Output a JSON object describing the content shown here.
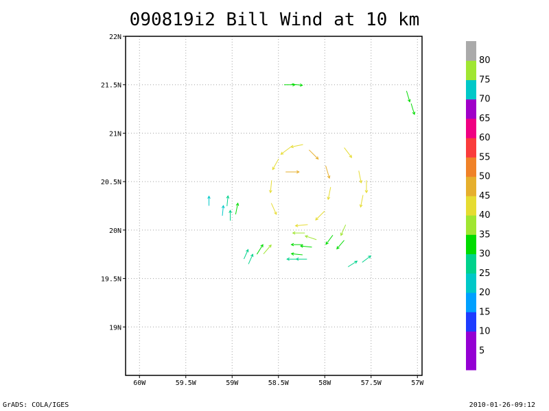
{
  "title": "090819i2 Bill Wind at 10 km",
  "footer": {
    "left": "GrADS: COLA/IGES",
    "right": "2010-01-26-09:12"
  },
  "colors": {
    "frame": "#000000",
    "grid": "#a0a0a0"
  },
  "chart_data": {
    "type": "vector-field",
    "grid": true,
    "xlim": [
      -60.15,
      -56.95
    ],
    "ylim": [
      18.5,
      22.0
    ],
    "x_ticks": [
      {
        "value": -60.0,
        "label": "60W"
      },
      {
        "value": -59.5,
        "label": "59.5W"
      },
      {
        "value": -59.0,
        "label": "59W"
      },
      {
        "value": -58.5,
        "label": "58.5W"
      },
      {
        "value": -58.0,
        "label": "58W"
      },
      {
        "value": -57.5,
        "label": "57.5W"
      },
      {
        "value": -57.0,
        "label": "57W"
      }
    ],
    "y_ticks": [
      {
        "value": 22.0,
        "label": "22N"
      },
      {
        "value": 21.5,
        "label": "21.5N"
      },
      {
        "value": 21.0,
        "label": "21N"
      },
      {
        "value": 20.5,
        "label": "20.5N"
      },
      {
        "value": 20.0,
        "label": "20N"
      },
      {
        "value": 19.5,
        "label": "19.5N"
      },
      {
        "value": 19.0,
        "label": "19N"
      }
    ],
    "colorbar": {
      "levels": [
        {
          "label": "5",
          "color": "#9400d3"
        },
        {
          "label": "10",
          "color": "#9400d3"
        },
        {
          "label": "15",
          "color": "#1e3cff"
        },
        {
          "label": "20",
          "color": "#00a0ff"
        },
        {
          "label": "25",
          "color": "#00c8c8"
        },
        {
          "label": "30",
          "color": "#00d28c"
        },
        {
          "label": "35",
          "color": "#00dc00"
        },
        {
          "label": "40",
          "color": "#a0e632"
        },
        {
          "label": "45",
          "color": "#e6dc32"
        },
        {
          "label": "50",
          "color": "#e6af2d"
        },
        {
          "label": "55",
          "color": "#f08228"
        },
        {
          "label": "60",
          "color": "#fa3c3c"
        },
        {
          "label": "65",
          "color": "#f00082"
        },
        {
          "label": "70",
          "color": "#a000c8"
        },
        {
          "label": "75",
          "color": "#00c8c8"
        },
        {
          "label": "80",
          "color": "#a0e632"
        },
        {
          "label": "",
          "color": "#aaaaaa"
        }
      ]
    },
    "vectors": [
      {
        "lon": -58.38,
        "lat": 21.5,
        "u": 1.0,
        "v": 0.0,
        "speed": 30
      },
      {
        "lon": -58.3,
        "lat": 21.5,
        "u": 1.0,
        "v": -0.1,
        "speed": 30
      },
      {
        "lon": -57.1,
        "lat": 21.38,
        "u": 0.3,
        "v": -1.0,
        "speed": 33
      },
      {
        "lon": -57.05,
        "lat": 21.25,
        "u": 0.3,
        "v": -1.0,
        "speed": 33
      },
      {
        "lon": -58.3,
        "lat": 20.87,
        "u": -1.0,
        "v": -0.2,
        "speed": 40
      },
      {
        "lon": -58.42,
        "lat": 20.82,
        "u": -0.8,
        "v": -0.6,
        "speed": 40
      },
      {
        "lon": -58.53,
        "lat": 20.68,
        "u": -0.5,
        "v": -0.9,
        "speed": 40
      },
      {
        "lon": -58.58,
        "lat": 20.45,
        "u": -0.1,
        "v": -1.0,
        "speed": 40
      },
      {
        "lon": -58.55,
        "lat": 20.22,
        "u": 0.4,
        "v": -0.9,
        "speed": 40
      },
      {
        "lon": -58.35,
        "lat": 20.6,
        "u": 1.0,
        "v": 0.0,
        "speed": 48
      },
      {
        "lon": -58.12,
        "lat": 20.78,
        "u": 0.7,
        "v": -0.7,
        "speed": 45
      },
      {
        "lon": -57.97,
        "lat": 20.6,
        "u": 0.3,
        "v": -1.0,
        "speed": 45
      },
      {
        "lon": -57.95,
        "lat": 20.38,
        "u": -0.2,
        "v": -1.0,
        "speed": 42
      },
      {
        "lon": -58.05,
        "lat": 20.15,
        "u": -0.7,
        "v": -0.7,
        "speed": 42
      },
      {
        "lon": -58.25,
        "lat": 20.05,
        "u": -1.0,
        "v": -0.1,
        "speed": 40
      },
      {
        "lon": -57.75,
        "lat": 20.8,
        "u": 0.6,
        "v": -0.8,
        "speed": 40
      },
      {
        "lon": -57.62,
        "lat": 20.55,
        "u": 0.2,
        "v": -1.0,
        "speed": 40
      },
      {
        "lon": -57.6,
        "lat": 20.3,
        "u": -0.2,
        "v": -1.0,
        "speed": 40
      },
      {
        "lon": -57.55,
        "lat": 20.45,
        "u": 0.0,
        "v": -1.0,
        "speed": 40
      },
      {
        "lon": -58.28,
        "lat": 19.97,
        "u": -1.0,
        "v": 0.0,
        "speed": 38
      },
      {
        "lon": -58.15,
        "lat": 19.92,
        "u": -0.9,
        "v": 0.3,
        "speed": 36
      },
      {
        "lon": -58.3,
        "lat": 19.85,
        "u": -1.0,
        "v": 0.0,
        "speed": 33
      },
      {
        "lon": -58.2,
        "lat": 19.83,
        "u": -1.0,
        "v": 0.1,
        "speed": 33
      },
      {
        "lon": -58.3,
        "lat": 19.75,
        "u": -1.0,
        "v": 0.1,
        "speed": 32
      },
      {
        "lon": -57.95,
        "lat": 19.9,
        "u": -0.6,
        "v": -0.8,
        "speed": 33
      },
      {
        "lon": -57.83,
        "lat": 19.85,
        "u": -0.6,
        "v": -0.7,
        "speed": 32
      },
      {
        "lon": -57.8,
        "lat": 20.0,
        "u": -0.4,
        "v": -0.9,
        "speed": 35
      },
      {
        "lon": -58.35,
        "lat": 19.7,
        "u": -1.0,
        "v": 0.0,
        "speed": 28
      },
      {
        "lon": -58.25,
        "lat": 19.7,
        "u": -1.0,
        "v": 0.0,
        "speed": 28
      },
      {
        "lon": -58.7,
        "lat": 19.8,
        "u": 0.5,
        "v": 0.8,
        "speed": 33
      },
      {
        "lon": -58.8,
        "lat": 19.7,
        "u": 0.4,
        "v": 0.9,
        "speed": 28
      },
      {
        "lon": -58.85,
        "lat": 19.75,
        "u": 0.4,
        "v": 0.9,
        "speed": 25
      },
      {
        "lon": -58.62,
        "lat": 19.8,
        "u": 0.6,
        "v": 0.7,
        "speed": 36
      },
      {
        "lon": -57.7,
        "lat": 19.65,
        "u": 0.8,
        "v": 0.5,
        "speed": 28
      },
      {
        "lon": -57.55,
        "lat": 19.7,
        "u": 0.8,
        "v": 0.6,
        "speed": 28
      },
      {
        "lon": -59.05,
        "lat": 20.3,
        "u": 0.1,
        "v": 1.0,
        "speed": 25
      },
      {
        "lon": -59.02,
        "lat": 20.15,
        "u": 0.0,
        "v": 1.0,
        "speed": 25
      },
      {
        "lon": -59.1,
        "lat": 20.2,
        "u": 0.1,
        "v": 1.0,
        "speed": 24
      },
      {
        "lon": -59.25,
        "lat": 20.3,
        "u": 0.0,
        "v": 1.0,
        "speed": 20
      },
      {
        "lon": -58.95,
        "lat": 20.22,
        "u": 0.2,
        "v": 1.0,
        "speed": 33
      }
    ]
  }
}
